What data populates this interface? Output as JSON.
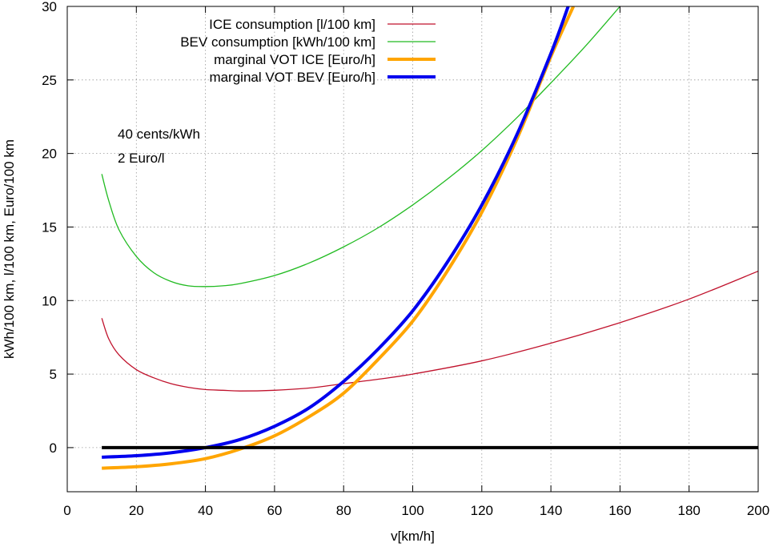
{
  "chart_data": {
    "type": "line",
    "title": "",
    "xlabel": "v[km/h]",
    "ylabel": "kWh/100 km, l/100 km, Euro/100 km",
    "xlim": [
      0,
      200
    ],
    "ylim": [
      -3,
      30
    ],
    "xticks": [
      0,
      20,
      40,
      60,
      80,
      100,
      120,
      140,
      160,
      180,
      200
    ],
    "yticks": [
      0,
      5,
      10,
      15,
      20,
      25,
      30
    ],
    "xtick_labels": [
      "0",
      "20",
      "40",
      "60",
      "80",
      "100",
      "120",
      "140",
      "160",
      "180",
      "200"
    ],
    "ytick_labels": [
      "0",
      "5",
      "10",
      "15",
      "20",
      "25",
      "30"
    ],
    "grid": true,
    "legend_position": "top-center",
    "annotations": [
      "40 cents/kWh",
      "2 Euro/l"
    ],
    "series": [
      {
        "name": "ICE consumption [l/100 km]",
        "color": "#c0122c",
        "width": 1.3,
        "x": [
          10,
          12,
          15,
          20,
          25,
          30,
          35,
          40,
          45,
          50,
          60,
          70,
          80,
          90,
          100,
          120,
          140,
          160,
          180,
          200
        ],
        "y": [
          8.8,
          7.4,
          6.3,
          5.3,
          4.75,
          4.35,
          4.1,
          3.95,
          3.9,
          3.85,
          3.9,
          4.05,
          4.35,
          4.65,
          5.0,
          5.9,
          7.1,
          8.5,
          10.1,
          12.0
        ]
      },
      {
        "name": "BEV consumption [kWh/100 km]",
        "color": "#22bb22",
        "width": 1.3,
        "x": [
          10,
          12,
          15,
          20,
          25,
          30,
          35,
          40,
          45,
          50,
          60,
          70,
          80,
          90,
          100,
          110,
          120,
          130,
          140,
          150,
          160
        ],
        "y": [
          18.6,
          16.8,
          14.8,
          13.0,
          11.9,
          11.3,
          11.0,
          10.95,
          11.0,
          11.15,
          11.7,
          12.55,
          13.65,
          14.95,
          16.5,
          18.25,
          20.2,
          22.4,
          24.8,
          27.3,
          30.0
        ]
      },
      {
        "name": "marginal VOT ICE [Euro/h]",
        "color": "#ffa500",
        "width": 4,
        "x": [
          10,
          20,
          30,
          40,
          50,
          60,
          70,
          80,
          90,
          100,
          110,
          120,
          130,
          140,
          146.5
        ],
        "y": [
          -1.4,
          -1.3,
          -1.1,
          -0.75,
          -0.1,
          0.8,
          2.1,
          3.7,
          6.0,
          8.6,
          12.0,
          16.0,
          20.9,
          26.6,
          30.0
        ]
      },
      {
        "name": "marginal VOT BEV [Euro/h]",
        "color": "#0000ee",
        "width": 4,
        "x": [
          10,
          20,
          30,
          40,
          50,
          60,
          70,
          80,
          90,
          100,
          110,
          120,
          130,
          140,
          145
        ],
        "y": [
          -0.65,
          -0.55,
          -0.35,
          0.0,
          0.55,
          1.45,
          2.7,
          4.5,
          6.7,
          9.3,
          12.6,
          16.5,
          21.2,
          26.8,
          30.0
        ]
      },
      {
        "name": "",
        "color": "#000000",
        "width": 4,
        "x": [
          10,
          200
        ],
        "y": [
          0,
          0
        ]
      }
    ]
  }
}
